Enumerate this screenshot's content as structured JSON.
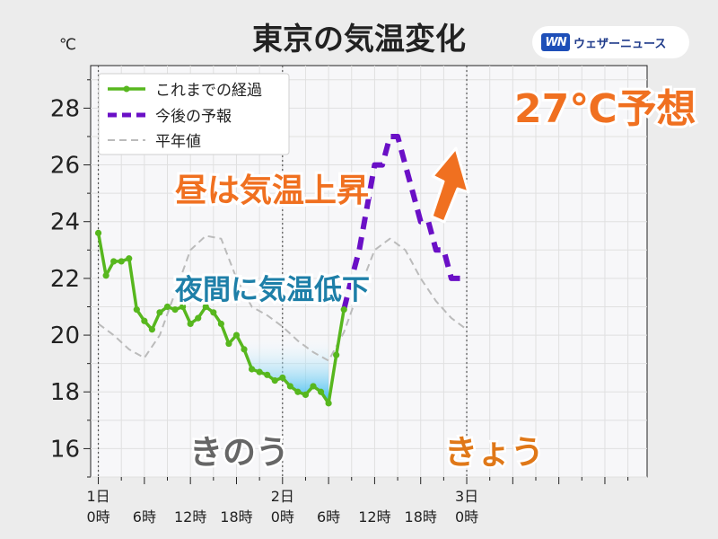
{
  "brand": {
    "logo_text": "WN",
    "name": "ウェザーニュース"
  },
  "chart_data": {
    "type": "line",
    "title": "東京の気温変化",
    "ylabel": "℃",
    "xlabel": "",
    "ylim": [
      15,
      29.5
    ],
    "yticks": [
      16,
      18,
      20,
      22,
      24,
      26,
      28
    ],
    "x_range_hours": [
      -1,
      71.5
    ],
    "xticks": [
      {
        "hour": 0,
        "line1": "1日",
        "line2": "0時"
      },
      {
        "hour": 6,
        "line1": "",
        "line2": "6時"
      },
      {
        "hour": 12,
        "line1": "",
        "line2": "12時"
      },
      {
        "hour": 18,
        "line1": "",
        "line2": "18時"
      },
      {
        "hour": 24,
        "line1": "2日",
        "line2": "0時"
      },
      {
        "hour": 30,
        "line1": "",
        "line2": "6時"
      },
      {
        "hour": 36,
        "line1": "",
        "line2": "12時"
      },
      {
        "hour": 42,
        "line1": "",
        "line2": "18時"
      },
      {
        "hour": 48,
        "line1": "3日",
        "line2": "0時"
      }
    ],
    "day_boundaries": [
      0,
      24,
      48
    ],
    "grid": true,
    "legend_position": "top-left",
    "series": [
      {
        "name": "これまでの経過",
        "color": "#57b71e",
        "style": "solid-markers",
        "x": [
          0,
          1,
          2,
          3,
          4,
          5,
          6,
          7,
          8,
          9,
          10,
          11,
          12,
          13,
          14,
          15,
          16,
          17,
          18,
          19,
          20,
          21,
          22,
          23,
          24,
          25,
          26,
          27,
          28,
          29,
          30,
          31,
          32
        ],
        "values": [
          23.6,
          22.1,
          22.6,
          22.6,
          22.7,
          20.9,
          20.5,
          20.2,
          20.8,
          21.0,
          20.9,
          21.0,
          20.4,
          20.6,
          21.0,
          20.8,
          20.4,
          19.7,
          20.0,
          19.5,
          18.8,
          18.7,
          18.6,
          18.4,
          18.5,
          18.2,
          18.0,
          17.9,
          18.2,
          18.0,
          17.6,
          19.3,
          20.9
        ]
      },
      {
        "name": "今後の予報",
        "color": "#6a0fc6",
        "style": "dashed",
        "x": [
          32,
          33,
          34,
          35,
          36,
          37,
          38,
          39,
          40,
          41,
          42,
          43,
          44,
          45,
          46,
          47,
          48
        ],
        "values": [
          20.9,
          22.0,
          23.0,
          24.5,
          26.0,
          26.0,
          27.0,
          27.0,
          26.0,
          25.0,
          24.0,
          24.0,
          23.0,
          23.0,
          22.0,
          22.0,
          22.0
        ]
      },
      {
        "name": "平年値",
        "color": "#bbbbbb",
        "style": "dashed-thin",
        "x": [
          0,
          2,
          4,
          6,
          8,
          10,
          12,
          14,
          16,
          18,
          20,
          22,
          24,
          26,
          28,
          30,
          32,
          34,
          36,
          38,
          40,
          42,
          44,
          46,
          48
        ],
        "values": [
          20.4,
          20.0,
          19.5,
          19.2,
          20.0,
          21.5,
          23.0,
          23.5,
          23.4,
          22.0,
          21.0,
          20.7,
          20.3,
          19.8,
          19.4,
          19.1,
          20.1,
          21.6,
          23.0,
          23.4,
          23.0,
          22.0,
          21.2,
          20.6,
          20.2
        ]
      }
    ],
    "annotations": [
      {
        "text": "昼は気温上昇",
        "color": "#f07020"
      },
      {
        "text": "27℃予想",
        "color": "#f07020"
      },
      {
        "text": "夜間に気温低下",
        "color": "#1e7fa8"
      },
      {
        "text": "きのう",
        "color": "#666666"
      },
      {
        "text": "きょう",
        "color": "#e07818"
      }
    ]
  }
}
